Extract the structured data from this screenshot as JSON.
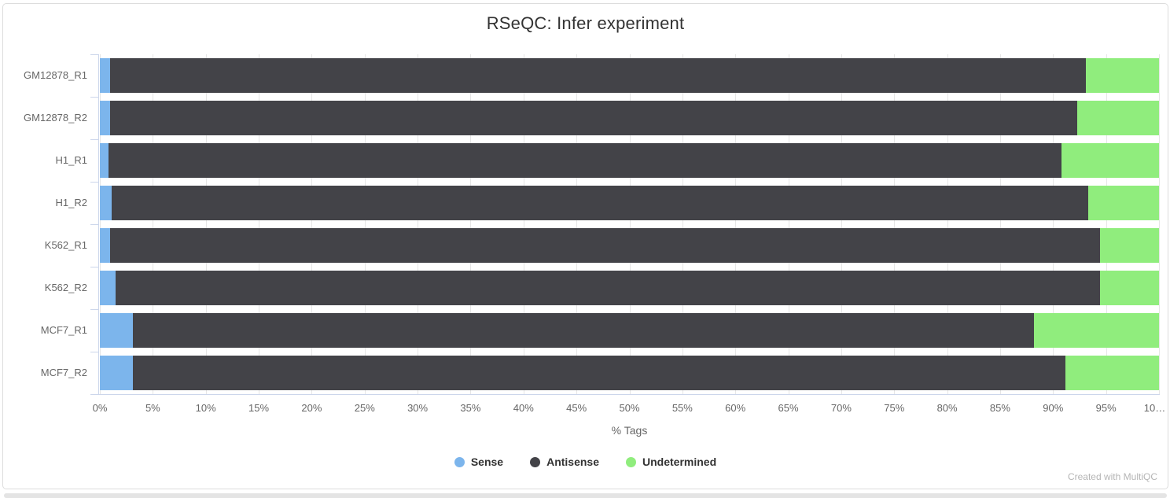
{
  "card": {
    "watermark": "Created with MultiQC"
  },
  "chart_data": {
    "type": "bar",
    "orientation": "horizontal",
    "stacked": true,
    "title": "RSeQC: Infer experiment",
    "xlabel": "% Tags",
    "xlim": [
      0,
      100
    ],
    "x_tick_step": 5,
    "x_tick_labels": [
      "0%",
      "5%",
      "10%",
      "15%",
      "20%",
      "25%",
      "30%",
      "35%",
      "40%",
      "45%",
      "50%",
      "55%",
      "60%",
      "65%",
      "70%",
      "75%",
      "80%",
      "85%",
      "90%",
      "95%",
      "10…"
    ],
    "categories": [
      "GM12878_R1",
      "GM12878_R2",
      "H1_R1",
      "H1_R2",
      "K562_R1",
      "K562_R2",
      "MCF7_R1",
      "MCF7_R2"
    ],
    "series": [
      {
        "name": "Sense",
        "color": "#7cb5ec",
        "values": [
          1.0,
          1.0,
          0.8,
          1.1,
          1.0,
          1.5,
          3.1,
          3.1
        ]
      },
      {
        "name": "Antisense",
        "color": "#434348",
        "values": [
          92.1,
          91.3,
          90.0,
          92.2,
          93.4,
          92.9,
          85.1,
          88.1
        ]
      },
      {
        "name": "Undetermined",
        "color": "#90ed7d",
        "values": [
          6.9,
          7.7,
          9.2,
          6.7,
          5.6,
          5.6,
          11.8,
          8.8
        ]
      }
    ],
    "legend_position": "bottom",
    "grid": true
  },
  "colors": {
    "grid": "#e6e6e6",
    "axis": "#ccd6eb",
    "tick_label": "#666666",
    "title": "#333333",
    "border": "#dddddd",
    "watermark": "#b5b5b5",
    "scrollbar_track": "#e4e4e4"
  }
}
